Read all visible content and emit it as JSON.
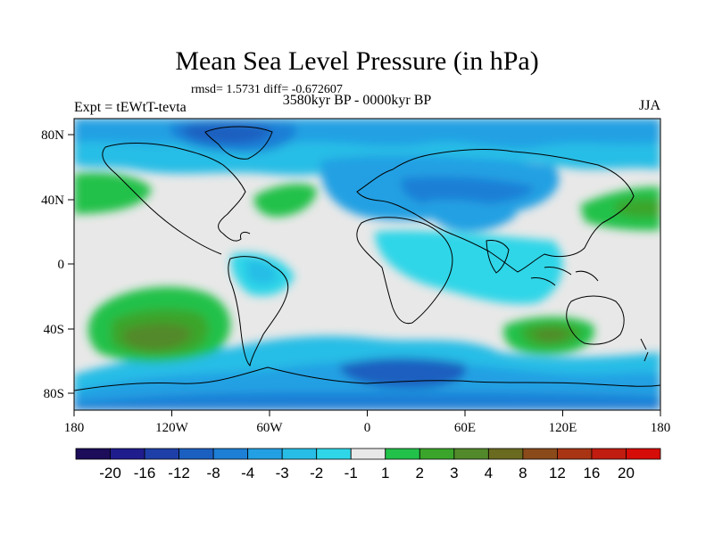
{
  "title": "Mean Sea Level Pressure (in hPa)",
  "stats": "rmsd= 1.5731 diff= -0.672607",
  "left_label": "Expt = tEWtT-tevta",
  "center_label": "3580kyr BP - 0000kyr BP",
  "right_label": "JJA",
  "lat_ticks": [
    "80N",
    "40N",
    "0",
    "40S",
    "80S"
  ],
  "lon_ticks": [
    "180",
    "120W",
    "60W",
    "0",
    "60E",
    "120E",
    "180"
  ],
  "colorbar": {
    "colors": [
      "#1c0c5a",
      "#1f1c8e",
      "#1f3fa8",
      "#1b5fc0",
      "#1d7fd6",
      "#22a0e3",
      "#27bde6",
      "#2fd6e8",
      "#e8e8e8",
      "#22c14a",
      "#3aa52a",
      "#52892a",
      "#6a6a20",
      "#8a4a1a",
      "#a83414",
      "#c01c10",
      "#d50c08"
    ],
    "labels": [
      "-20",
      "-16",
      "-12",
      "-8",
      "-4",
      "-3",
      "-2",
      "-1",
      "1",
      "2",
      "3",
      "4",
      "8",
      "12",
      "16",
      "20"
    ]
  },
  "chart_data": {
    "type": "heatmap",
    "projection": "cylindrical equidistant",
    "variable": "Mean Sea Level Pressure difference (hPa)",
    "season": "JJA",
    "lon_range": [
      -180,
      180
    ],
    "lat_range": [
      -90,
      90
    ],
    "levels": [
      -20,
      -16,
      -12,
      -8,
      -4,
      -3,
      -2,
      -1,
      1,
      2,
      3,
      4,
      8,
      12,
      16,
      20
    ],
    "features": [
      {
        "name": "North Pacific high anomaly",
        "lon": -170,
        "lat": 38,
        "value": 2
      },
      {
        "name": "North Atlantic high anomaly",
        "lon": -45,
        "lat": 38,
        "value": 2
      },
      {
        "name": "Northwest Pacific high anomaly",
        "lon": 160,
        "lat": 38,
        "value": 3
      },
      {
        "name": "South Pacific high anomaly",
        "lon": -130,
        "lat": -42,
        "value": 4
      },
      {
        "name": "South Indian Ocean high anomaly",
        "lon": 115,
        "lat": -42,
        "value": 4
      },
      {
        "name": "Arctic / Greenland low anomaly",
        "lon": -45,
        "lat": 78,
        "value": -4
      },
      {
        "name": "Eurasian low anomaly",
        "lon": 60,
        "lat": 45,
        "value": -3
      },
      {
        "name": "Southern Ocean low anomaly",
        "lon": 30,
        "lat": -70,
        "value": -4
      }
    ]
  }
}
